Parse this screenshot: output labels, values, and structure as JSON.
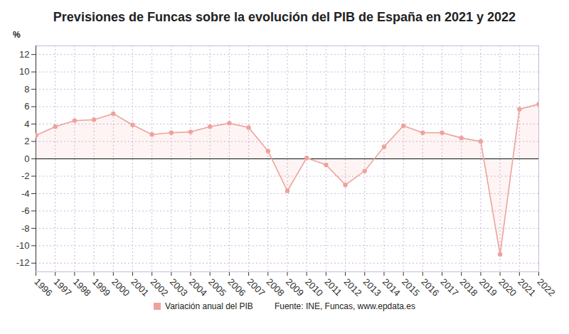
{
  "chart_data": {
    "type": "line",
    "title": "Previsiones de Funcas sobre la evolución del PIB de España en 2021 y 2022",
    "ylabel": "%",
    "source": "Fuente: INE, Funcas, www.epdata.es",
    "x": [
      1996,
      1997,
      1998,
      1999,
      2000,
      2001,
      2002,
      2003,
      2004,
      2005,
      2006,
      2007,
      2008,
      2009,
      2010,
      2011,
      2012,
      2013,
      2014,
      2015,
      2016,
      2017,
      2018,
      2019,
      2020,
      2021,
      2022
    ],
    "series": [
      {
        "name": "Variación anual del PIB",
        "color": "#eea29c",
        "values": [
          2.7,
          3.7,
          4.4,
          4.5,
          5.2,
          3.9,
          2.8,
          3.0,
          3.1,
          3.7,
          4.1,
          3.6,
          0.9,
          -3.7,
          0.1,
          -0.7,
          -3.0,
          -1.4,
          1.4,
          3.8,
          3.0,
          3.0,
          2.4,
          2.0,
          -11.0,
          5.7,
          6.3
        ]
      }
    ],
    "xlim": [
      1996,
      2022
    ],
    "xticks": [
      1996,
      1997,
      1998,
      1999,
      2000,
      2001,
      2002,
      2003,
      2004,
      2005,
      2006,
      2007,
      2008,
      2009,
      2010,
      2011,
      2012,
      2013,
      2014,
      2015,
      2016,
      2017,
      2018,
      2019,
      2020,
      2021,
      2022
    ],
    "ylim": [
      -13,
      13
    ],
    "yticks": [
      -12,
      -10,
      -8,
      -6,
      -4,
      -2,
      0,
      2,
      4,
      6,
      8,
      10,
      12
    ],
    "grid": true,
    "marker": "circle",
    "legend": "bottom"
  }
}
